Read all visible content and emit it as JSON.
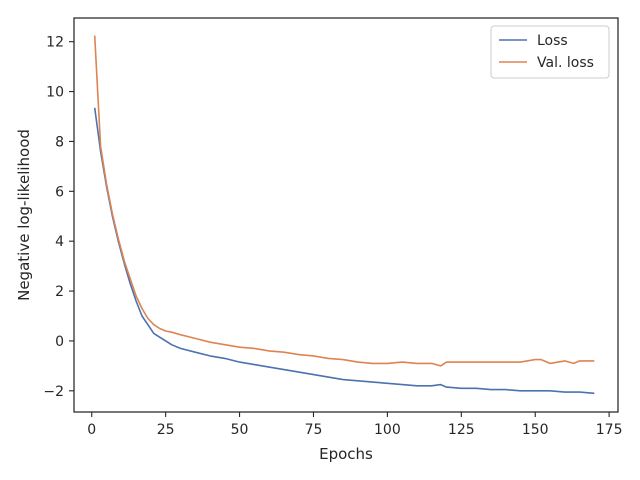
{
  "chart_data": {
    "type": "line",
    "xlabel": "Epochs",
    "ylabel": "Negative log-likelihood",
    "xlim": [
      -6,
      178
    ],
    "ylim": [
      -2.85,
      12.95
    ],
    "xticks": [
      0,
      25,
      50,
      75,
      100,
      125,
      150,
      175
    ],
    "yticks": [
      -2,
      0,
      2,
      4,
      6,
      8,
      10,
      12
    ],
    "xtick_labels": [
      "0",
      "25",
      "50",
      "75",
      "100",
      "125",
      "150",
      "175"
    ],
    "ytick_labels": [
      "−2",
      "0",
      "2",
      "4",
      "6",
      "8",
      "10",
      "12"
    ],
    "grid": false,
    "legend": "top-right",
    "series": [
      {
        "name": "Loss",
        "color": "#4c72b0",
        "x": [
          1,
          3,
          5,
          7,
          9,
          11,
          13,
          15,
          17,
          19,
          21,
          23,
          25,
          27,
          30,
          35,
          40,
          45,
          50,
          55,
          60,
          65,
          70,
          75,
          80,
          85,
          90,
          95,
          100,
          105,
          110,
          115,
          118,
          120,
          125,
          130,
          135,
          140,
          145,
          150,
          155,
          160,
          165,
          170
        ],
        "y": [
          9.35,
          7.6,
          6.2,
          5.0,
          4.0,
          3.1,
          2.3,
          1.6,
          1.0,
          0.65,
          0.3,
          0.15,
          0.0,
          -0.15,
          -0.3,
          -0.45,
          -0.6,
          -0.7,
          -0.85,
          -0.95,
          -1.05,
          -1.15,
          -1.25,
          -1.35,
          -1.45,
          -1.55,
          -1.6,
          -1.65,
          -1.7,
          -1.75,
          -1.8,
          -1.8,
          -1.75,
          -1.85,
          -1.9,
          -1.9,
          -1.95,
          -1.95,
          -2.0,
          -2.0,
          -2.0,
          -2.05,
          -2.05,
          -2.1
        ]
      },
      {
        "name": "Val. loss",
        "color": "#dd8452",
        "x": [
          1,
          3,
          5,
          7,
          9,
          11,
          13,
          15,
          17,
          19,
          21,
          23,
          25,
          27,
          30,
          35,
          40,
          45,
          50,
          55,
          60,
          65,
          70,
          75,
          80,
          85,
          90,
          95,
          100,
          105,
          110,
          115,
          118,
          120,
          125,
          130,
          135,
          140,
          145,
          150,
          152,
          155,
          160,
          163,
          165,
          170
        ],
        "y": [
          12.25,
          7.8,
          6.3,
          5.1,
          4.1,
          3.2,
          2.5,
          1.8,
          1.3,
          0.9,
          0.65,
          0.5,
          0.4,
          0.35,
          0.25,
          0.1,
          -0.05,
          -0.15,
          -0.25,
          -0.3,
          -0.4,
          -0.45,
          -0.55,
          -0.6,
          -0.7,
          -0.75,
          -0.85,
          -0.9,
          -0.9,
          -0.85,
          -0.9,
          -0.9,
          -1.0,
          -0.85,
          -0.85,
          -0.85,
          -0.85,
          -0.85,
          -0.85,
          -0.75,
          -0.75,
          -0.9,
          -0.8,
          -0.9,
          -0.8,
          -0.8
        ]
      }
    ]
  }
}
